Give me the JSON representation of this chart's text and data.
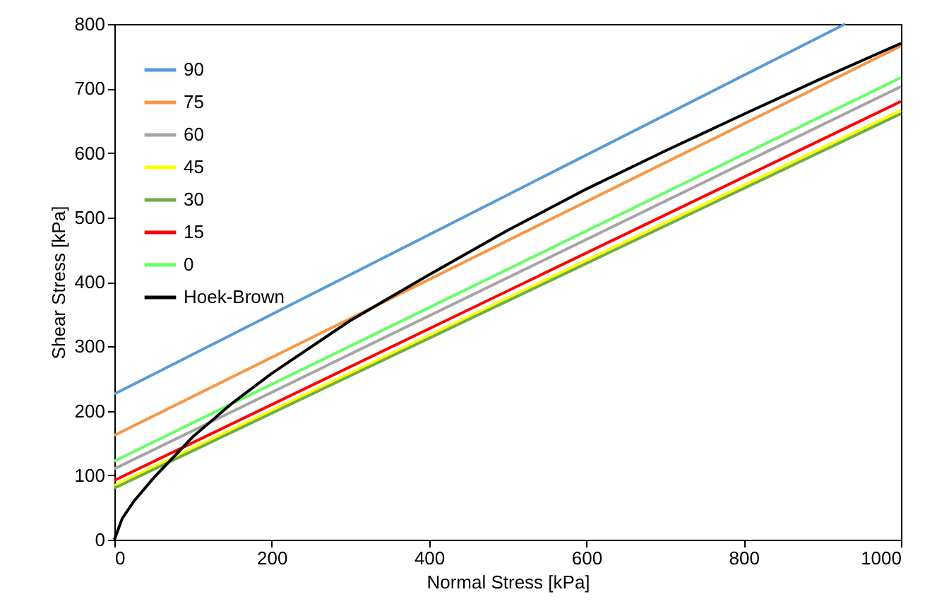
{
  "chart_data": {
    "type": "line",
    "xlabel": "Normal Stress [kPa]",
    "ylabel": "Shear Stress [kPa]",
    "x": [
      0,
      1000
    ],
    "series": [
      {
        "name": "90",
        "color": "#5b9bd5",
        "x": [
          0,
          929
        ],
        "values": [
          226,
          800
        ]
      },
      {
        "name": "75",
        "color": "#f79646",
        "values": [
          162,
          766
        ]
      },
      {
        "name": "60",
        "color": "#a5a5a5",
        "values": [
          110,
          703
        ]
      },
      {
        "name": "45",
        "color": "#ffff00",
        "values": [
          84,
          666
        ]
      },
      {
        "name": "30",
        "color": "#70ad47",
        "values": [
          80,
          661
        ]
      },
      {
        "name": "15",
        "color": "#ff0000",
        "values": [
          92,
          680
        ]
      },
      {
        "name": "0",
        "color": "#66ff66",
        "values": [
          122,
          717
        ]
      },
      {
        "name": "Hoek-Brown",
        "color": "#000000",
        "x": [
          0,
          10,
          25,
          50,
          100,
          150,
          200,
          300,
          400,
          500,
          600,
          700,
          800,
          900,
          1000
        ],
        "values": [
          0,
          33,
          60,
          96,
          160,
          212,
          258,
          340,
          411,
          480,
          544,
          603,
          660,
          716,
          770
        ]
      }
    ],
    "xlim": [
      0,
      1000
    ],
    "xticks": [
      0,
      200,
      400,
      600,
      800,
      1000
    ],
    "ylim": [
      0,
      800
    ],
    "yticks": [
      0,
      100,
      200,
      300,
      400,
      500,
      600,
      700,
      800
    ],
    "grid": false,
    "legend": "top left",
    "marker": "none",
    "line_style": "solid"
  }
}
